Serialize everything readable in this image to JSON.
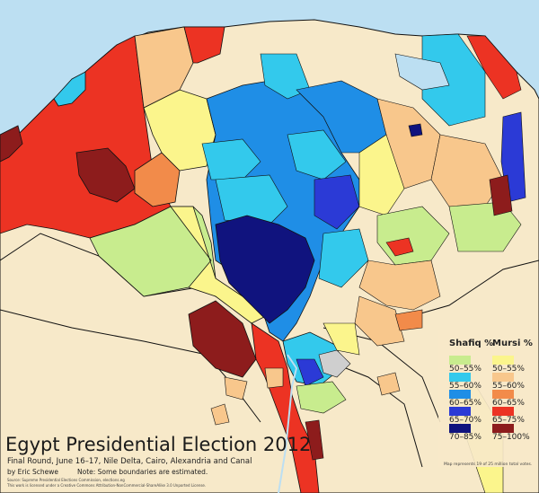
{
  "title": "Egypt Presidential Election 2012",
  "subtitle": "Final Round, June 16–17, Nile Delta, Cairo, Alexandria and Canal",
  "author": "by Eric Schewe",
  "note": "Note: Some boundaries are estimated.",
  "source": "Source: Supreme Presidential Elections Commission, elections.eg",
  "license": "This work is licensed under a Creative Commons Attribution-NonCommercial-ShareAlike 3.0 Unported License.",
  "scale_note": "Map represents 19 of 25 million total votes.",
  "legend": {
    "shafiq_header": "Shafiq %",
    "mursi_header": "Mursi %",
    "shafiq": [
      {
        "label": "50–55%",
        "color": "#c8ec8e"
      },
      {
        "label": "55–60%",
        "color": "#33c9ec"
      },
      {
        "label": "60–65%",
        "color": "#1f8ee6"
      },
      {
        "label": "65–70%",
        "color": "#2b3ad6"
      },
      {
        "label": "70–85%",
        "color": "#10137e"
      }
    ],
    "mursi": [
      {
        "label": "50–55%",
        "color": "#fbf58c"
      },
      {
        "label": "55–60%",
        "color": "#f8c78c"
      },
      {
        "label": "60–65%",
        "color": "#f28b4a"
      },
      {
        "label": "65–75%",
        "color": "#ec3323"
      },
      {
        "label": "75–100%",
        "color": "#8d1c1c"
      }
    ]
  },
  "colors": {
    "sea": "#bcdff2",
    "land_outside": "#f7e9c9",
    "border": "#111111"
  }
}
